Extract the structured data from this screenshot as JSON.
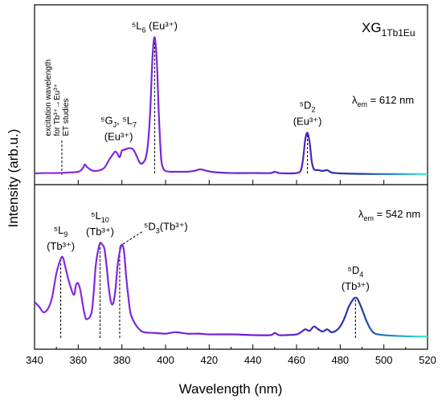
{
  "chart_data": {
    "type": "line",
    "xlabel": "Wavelength (nm)",
    "ylabel": "Intensity (arb.u.)",
    "xlim": [
      340,
      520
    ],
    "x_ticks": [
      340,
      360,
      380,
      400,
      420,
      440,
      460,
      480,
      500,
      520
    ],
    "grid": false,
    "sample_label": {
      "base": "XG",
      "sub": "1Tb1Eu"
    },
    "line_gradient": {
      "stops": [
        [
          340,
          "#8a2be2"
        ],
        [
          455,
          "#6a1fd0"
        ],
        [
          470,
          "#3a2ab0"
        ],
        [
          490,
          "#1e3ca0"
        ],
        [
          505,
          "#1a8fd8"
        ],
        [
          520,
          "#3ef0c8"
        ]
      ]
    },
    "panels": [
      {
        "name": "top",
        "em_label": {
          "lambda": "λ",
          "sub": "em",
          "value": " = 612 nm"
        },
        "ylim": [
          0,
          1.0
        ],
        "x": [
          340,
          345,
          350,
          355,
          360,
          362,
          363,
          364,
          366,
          368,
          370,
          372,
          374,
          376,
          377,
          378,
          379,
          380,
          381,
          382,
          383,
          384,
          385,
          386,
          387,
          388,
          389,
          390,
          391,
          392,
          393,
          394,
          395,
          396,
          397,
          398,
          399,
          400,
          402,
          405,
          410,
          413,
          416,
          419,
          422,
          425,
          430,
          440,
          448,
          450,
          452,
          455,
          460,
          462,
          463,
          464,
          465,
          466,
          467,
          468,
          470,
          472,
          474,
          476,
          478,
          480,
          485,
          490,
          495,
          500,
          505,
          510,
          515,
          520
        ],
        "y": [
          0.01,
          0.012,
          0.012,
          0.015,
          0.02,
          0.04,
          0.065,
          0.05,
          0.03,
          0.025,
          0.03,
          0.045,
          0.09,
          0.13,
          0.145,
          0.13,
          0.11,
          0.15,
          0.155,
          0.16,
          0.165,
          0.165,
          0.16,
          0.14,
          0.11,
          0.08,
          0.07,
          0.08,
          0.11,
          0.2,
          0.4,
          0.72,
          0.85,
          0.7,
          0.35,
          0.1,
          0.04,
          0.025,
          0.02,
          0.02,
          0.02,
          0.025,
          0.035,
          0.025,
          0.018,
          0.015,
          0.012,
          0.012,
          0.012,
          0.02,
          0.012,
          0.01,
          0.012,
          0.03,
          0.1,
          0.22,
          0.26,
          0.2,
          0.08,
          0.035,
          0.03,
          0.025,
          0.03,
          0.015,
          0.012,
          0.01,
          0.008,
          0.007,
          0.006,
          0.006,
          0.006,
          0.006,
          0.006,
          0.006
        ]
      },
      {
        "name": "bottom",
        "em_label": {
          "lambda": "λ",
          "sub": "em",
          "value": " = 542 nm"
        },
        "ylim": [
          0,
          1.0
        ],
        "x": [
          340,
          342,
          344,
          346,
          348,
          350,
          352,
          353,
          354,
          356,
          358,
          359,
          360,
          361,
          362,
          363,
          364,
          366,
          367,
          368,
          369,
          370,
          371,
          372,
          373,
          374,
          375,
          376,
          377,
          378,
          379,
          380,
          381,
          382,
          383,
          384,
          386,
          388,
          390,
          395,
          400,
          402,
          405,
          410,
          415,
          420,
          430,
          440,
          448,
          450,
          452,
          455,
          460,
          462,
          464,
          466,
          468,
          470,
          472,
          474,
          476,
          478,
          480,
          482,
          484,
          486,
          487,
          488,
          490,
          492,
          494,
          496,
          500,
          505,
          510,
          515,
          520
        ],
        "y": [
          0.25,
          0.22,
          0.18,
          0.2,
          0.28,
          0.45,
          0.55,
          0.56,
          0.5,
          0.38,
          0.3,
          0.37,
          0.38,
          0.33,
          0.24,
          0.16,
          0.13,
          0.17,
          0.3,
          0.5,
          0.6,
          0.66,
          0.65,
          0.62,
          0.5,
          0.35,
          0.25,
          0.24,
          0.33,
          0.5,
          0.6,
          0.65,
          0.6,
          0.42,
          0.28,
          0.17,
          0.1,
          0.06,
          0.04,
          0.035,
          0.03,
          0.035,
          0.04,
          0.03,
          0.03,
          0.025,
          0.025,
          0.02,
          0.02,
          0.035,
          0.02,
          0.02,
          0.025,
          0.04,
          0.06,
          0.05,
          0.08,
          0.06,
          0.045,
          0.06,
          0.04,
          0.05,
          0.08,
          0.14,
          0.22,
          0.27,
          0.28,
          0.27,
          0.2,
          0.12,
          0.06,
          0.03,
          0.02,
          0.015,
          0.012,
          0.01,
          0.01
        ]
      }
    ],
    "annotations": [
      {
        "panel": "top",
        "x": 352.5,
        "y_data": 0.02,
        "dashed_line_to_y": 0.22,
        "rotated": true,
        "lines": [
          "excitation wavelength",
          "for Tb³⁺→Eu³⁺",
          "ET studies"
        ]
      },
      {
        "panel": "top",
        "x": 378.5,
        "y_data": 0.165,
        "label": {
          "main": "⁵G",
          "mainSub": "J",
          "rest": ", ⁵L",
          "restSub": "7"
        },
        "line2": "(Eu³⁺)"
      },
      {
        "panel": "top",
        "x": 395,
        "y_data": 0.85,
        "dashed_line": true,
        "label": {
          "main": "⁵L",
          "mainSub": "6",
          "rest": " (Eu³⁺)",
          "restSub": ""
        }
      },
      {
        "panel": "top",
        "x": 465,
        "y_data": 0.26,
        "dashed_line": true,
        "label": {
          "main": "⁵D",
          "mainSub": "2",
          "rest": "",
          "restSub": ""
        },
        "line2": "(Eu³⁺)"
      },
      {
        "panel": "bottom",
        "x": 352,
        "y_data": 0.56,
        "dashed_line": true,
        "label": {
          "main": "⁵L",
          "mainSub": "9",
          "rest": "",
          "restSub": ""
        },
        "line2": "(Tb³⁺)"
      },
      {
        "panel": "bottom",
        "x": 370,
        "y_data": 0.66,
        "dashed_line": true,
        "label": {
          "main": "⁵L",
          "mainSub": "10",
          "rest": "",
          "restSub": ""
        },
        "line2": "(Tb³⁺)"
      },
      {
        "panel": "bottom",
        "x": 379,
        "y_data": 0.65,
        "dashed_line": true,
        "leader": true,
        "label": {
          "main": "⁵D",
          "mainSub": "3",
          "rest": "(Tb³⁺)",
          "restSub": ""
        }
      },
      {
        "panel": "bottom",
        "x": 487,
        "y_data": 0.28,
        "dashed_line": true,
        "label": {
          "main": "⁵D",
          "mainSub": "4",
          "rest": "",
          "restSub": ""
        },
        "line2": "(Tb³⁺)"
      }
    ]
  }
}
